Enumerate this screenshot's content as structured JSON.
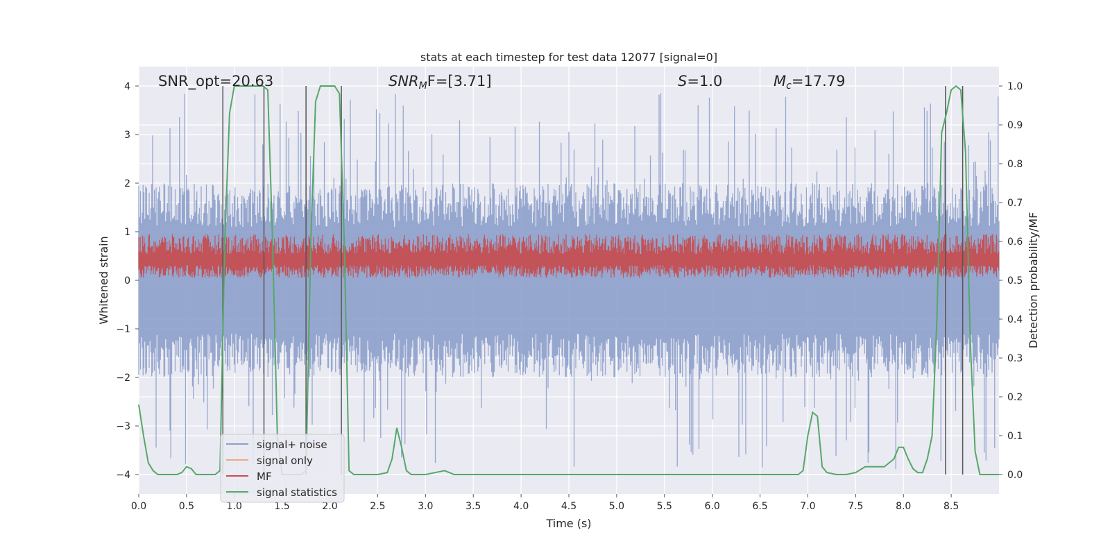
{
  "chart_data": {
    "type": "line",
    "title": "stats at each timestep for test data 12077 [signal=0]",
    "xlabel": "Time (s)",
    "ylabel": "Whitened strain",
    "y2label": "Detection probability/MF",
    "xlim": [
      0.0,
      9.0
    ],
    "ylim": [
      -4.4,
      4.4
    ],
    "y2lim": [
      -0.05,
      1.05
    ],
    "xticks": [
      "0.0",
      "0.5",
      "1.0",
      "1.5",
      "2.0",
      "2.5",
      "3.0",
      "3.5",
      "4.0",
      "4.5",
      "5.0",
      "5.5",
      "6.0",
      "6.5",
      "7.0",
      "7.5",
      "8.0",
      "8.5"
    ],
    "yticks": [
      "−4",
      "−3",
      "−2",
      "−1",
      "0",
      "1",
      "2",
      "3",
      "4"
    ],
    "y2ticks": [
      "0.0",
      "0.1",
      "0.2",
      "0.3",
      "0.4",
      "0.5",
      "0.6",
      "0.7",
      "0.8",
      "0.9",
      "1.0"
    ],
    "grid": true,
    "legend_position": "lower-left",
    "annotations": {
      "snr_opt": "SNR_opt=20.63",
      "snr_mf_main": "SNR",
      "snr_mf_sub": "M",
      "snr_mf_rest": "F=[3.71]",
      "s_main": "S",
      "s_rest": "=1.0",
      "mc_main": "M",
      "mc_sub": "c",
      "mc_rest": "=17.79"
    },
    "series": [
      {
        "name": "signal+ noise",
        "color": "#8da0cb",
        "kind": "noise",
        "y_center": 0.0,
        "y_amp": 2.0,
        "y_peak": 3.9
      },
      {
        "name": "signal only",
        "color": "#f0a889",
        "kind": "empty"
      },
      {
        "name": "MF",
        "color": "#c44e52",
        "kind": "mf",
        "y_center": 0.4,
        "y_range": [
          0.05,
          0.95
        ]
      },
      {
        "name": "signal statistics",
        "color": "#55a868",
        "kind": "line",
        "axis": "y2",
        "x": [
          0.0,
          0.05,
          0.1,
          0.15,
          0.2,
          0.3,
          0.4,
          0.45,
          0.5,
          0.55,
          0.6,
          0.65,
          0.7,
          0.8,
          0.85,
          0.9,
          0.95,
          1.0,
          1.05,
          1.1,
          1.2,
          1.25,
          1.3,
          1.35,
          1.4,
          1.45,
          1.5,
          1.55,
          1.6,
          1.7,
          1.75,
          1.8,
          1.85,
          1.9,
          2.0,
          2.05,
          2.1,
          2.15,
          2.2,
          2.25,
          2.3,
          2.5,
          2.6,
          2.65,
          2.7,
          2.75,
          2.8,
          2.85,
          2.9,
          3.0,
          3.1,
          3.2,
          3.25,
          3.3,
          3.4,
          4.0,
          5.0,
          6.0,
          6.9,
          6.95,
          7.0,
          7.05,
          7.1,
          7.15,
          7.2,
          7.3,
          7.4,
          7.5,
          7.6,
          7.7,
          7.8,
          7.9,
          7.95,
          8.0,
          8.05,
          8.1,
          8.15,
          8.2,
          8.25,
          8.3,
          8.35,
          8.4,
          8.45,
          8.5,
          8.55,
          8.6,
          8.65,
          8.7,
          8.75,
          8.8,
          8.9,
          8.95,
          9.0
        ],
        "y": [
          0.18,
          0.1,
          0.03,
          0.01,
          0.0,
          0.0,
          0.0,
          0.005,
          0.02,
          0.015,
          0.0,
          0.0,
          0.0,
          0.0,
          0.01,
          0.6,
          0.93,
          1.0,
          1.0,
          1.0,
          1.0,
          1.0,
          1.0,
          0.99,
          0.6,
          0.1,
          0.0,
          0.0,
          0.0,
          0.0,
          0.01,
          0.6,
          0.96,
          1.0,
          1.0,
          1.0,
          0.98,
          0.6,
          0.01,
          0.0,
          0.0,
          0.0,
          0.005,
          0.04,
          0.12,
          0.07,
          0.01,
          0.0,
          0.0,
          0.0,
          0.005,
          0.01,
          0.005,
          0.0,
          0.0,
          0.0,
          0.0,
          0.0,
          0.0,
          0.01,
          0.1,
          0.16,
          0.15,
          0.02,
          0.005,
          0.0,
          0.0,
          0.005,
          0.02,
          0.02,
          0.02,
          0.04,
          0.07,
          0.07,
          0.04,
          0.015,
          0.005,
          0.005,
          0.04,
          0.1,
          0.4,
          0.88,
          0.93,
          0.99,
          1.0,
          0.99,
          0.83,
          0.34,
          0.06,
          0.0,
          0.0,
          0.0,
          0.0
        ]
      }
    ],
    "vlines_x": [
      0.88,
      1.31,
      1.75,
      2.12,
      8.44,
      8.62
    ]
  }
}
